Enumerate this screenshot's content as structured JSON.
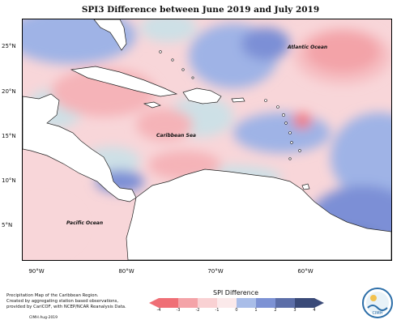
{
  "title": "SPI3 Difference between June 2019 and July 2019",
  "axes": {
    "lat_labels": [
      "25°N",
      "20°N",
      "15°N",
      "10°N",
      "5°N"
    ],
    "lon_labels": [
      "90°W",
      "80°W",
      "70°W",
      "60°W"
    ]
  },
  "ocean_labels": {
    "atlantic": "Atlantic Ocean",
    "caribbean": "Caribbean Sea",
    "pacific": "Pacific Ocean"
  },
  "credit": {
    "line1": "Precipitation Map of the Caribbean Region.",
    "line2": "Created by aggregating station based observations,",
    "line3": "provided by CariCOF, with NCEP/NCAR Reanalysis Data.",
    "stamp": "CIMH Aug-2019"
  },
  "legend": {
    "title": "SPI Difference",
    "ticks": [
      "-4",
      "-3",
      "-2",
      "-1",
      "0",
      "1",
      "2",
      "3",
      "4"
    ],
    "colors": [
      "#ef6f76",
      "#f4a3a8",
      "#f9d1d3",
      "#fbe9ea",
      "#d8e6ec",
      "#a9bde8",
      "#7d92d4",
      "#5c6ea8",
      "#3a4a78"
    ]
  },
  "palette": {
    "strong_dry": "#ef7c84",
    "dry": "#f5b3b8",
    "slight_dry": "#f8d6d9",
    "neutral": "#cde0e6",
    "wet": "#9fb3e6",
    "very_wet": "#7b8fd6",
    "land": "#ffffff",
    "outline": "#222222"
  },
  "logo": {
    "text": "CIMH"
  }
}
